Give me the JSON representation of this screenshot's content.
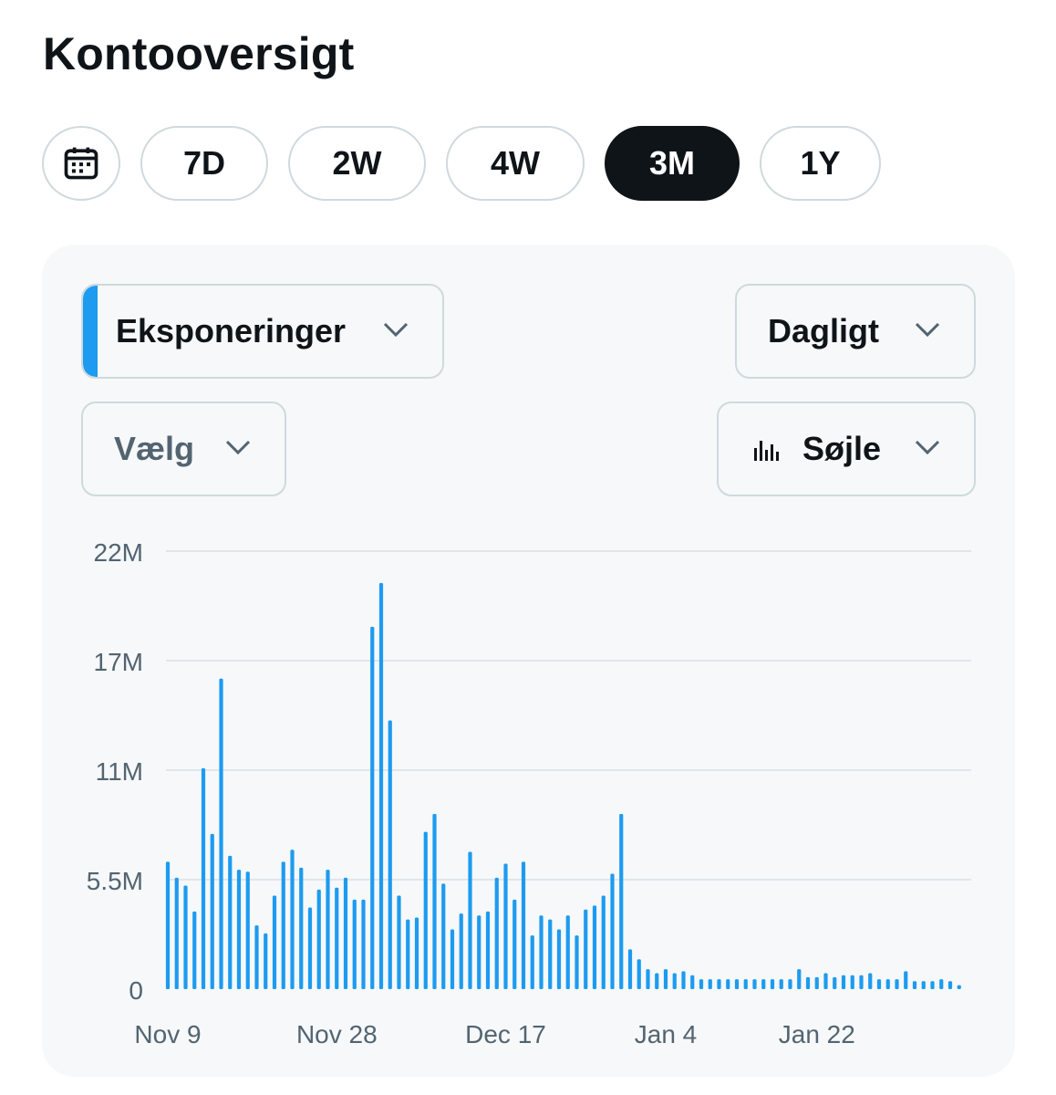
{
  "page": {
    "title": "Kontooversigt"
  },
  "ranges": [
    {
      "label": "7D",
      "active": false
    },
    {
      "label": "2W",
      "active": false
    },
    {
      "label": "4W",
      "active": false
    },
    {
      "label": "3M",
      "active": true
    },
    {
      "label": "1Y",
      "active": false
    }
  ],
  "controls": {
    "metric": "Eksponeringer",
    "interval": "Dagligt",
    "compare": "Vælg",
    "chart_type": "Søjle"
  },
  "colors": {
    "bar": "#1d9bf0",
    "accent": "#1d9bf0",
    "active_pill": "#0f1419"
  },
  "icons": {
    "calendar": "calendar-icon",
    "chart_type": "bar-chart-icon",
    "dropdown": "chevron-down-icon"
  },
  "chart_data": {
    "type": "bar",
    "x_tick_labels": [
      "Nov 9",
      "Nov 28",
      "Dec 17",
      "Jan 4",
      "Jan 22"
    ],
    "y_tick_labels": [
      "0",
      "5.5M",
      "11M",
      "17M",
      "22M"
    ],
    "ylim": [
      0,
      22000000
    ],
    "grid": true,
    "series": [
      {
        "values": [
          6400000,
          5600000,
          5200000,
          3900000,
          11100000,
          7800000,
          15600000,
          6700000,
          6000000,
          5900000,
          3200000,
          2800000,
          4700000,
          6400000,
          7000000,
          6100000,
          4100000,
          5000000,
          6000000,
          5100000,
          5600000,
          4500000,
          4500000,
          18200000,
          20400000,
          13500000,
          4700000,
          3500000,
          3600000,
          7900000,
          8800000,
          5300000,
          3000000,
          3800000,
          6900000,
          3700000,
          3900000,
          5600000,
          6300000,
          4500000,
          6400000,
          2700000,
          3700000,
          3500000,
          3000000,
          3700000,
          2700000,
          4000000,
          4200000,
          4700000,
          5800000,
          8800000,
          2000000,
          1500000,
          1000000,
          800000,
          1000000,
          800000,
          900000,
          700000,
          500000,
          500000,
          500000,
          500000,
          500000,
          500000,
          500000,
          500000,
          500000,
          500000,
          500000,
          1000000,
          600000,
          600000,
          800000,
          600000,
          700000,
          700000,
          700000,
          800000,
          500000,
          500000,
          500000,
          900000,
          400000,
          400000,
          400000,
          500000,
          400000,
          200000
        ]
      }
    ]
  }
}
